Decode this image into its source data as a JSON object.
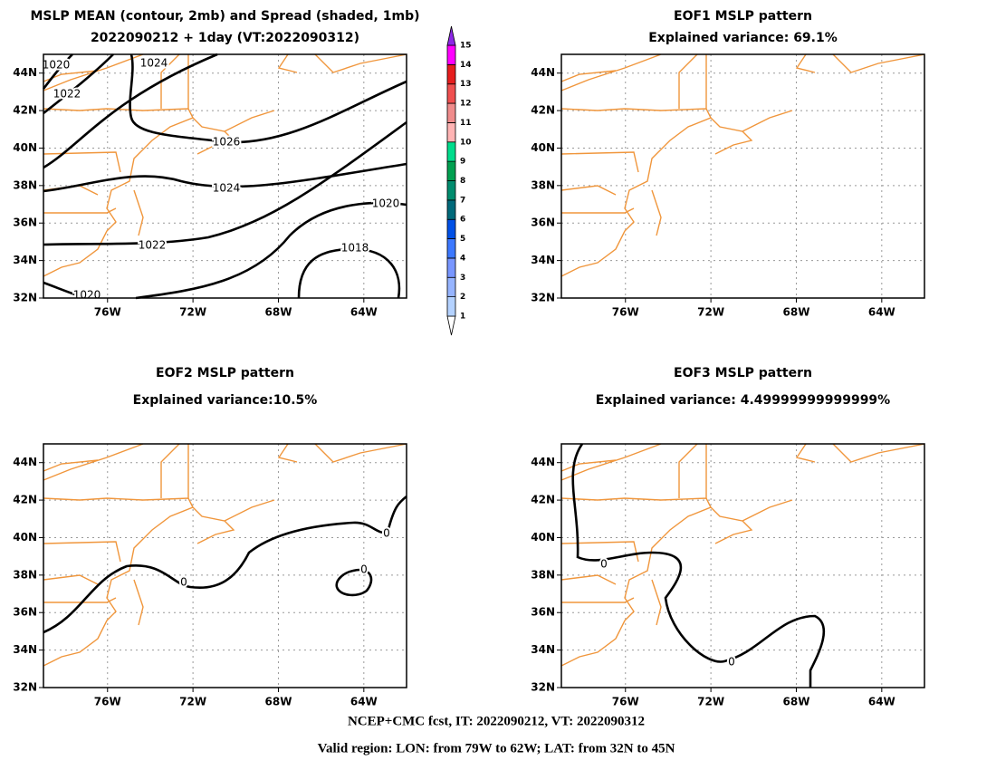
{
  "panels": [
    {
      "title": [
        "MSLP MEAN (contour, 2mb) and Spread (shaded, 1mb)",
        "2022090212 + 1day (VT:2022090312)"
      ],
      "contour_labels": [
        1020,
        1022,
        1024,
        1026,
        1024,
        1022,
        1020,
        1018,
        1020
      ]
    },
    {
      "title": [
        "EOF1 MSLP pattern",
        "Explained variance: 69.1%"
      ],
      "contour_labels": []
    },
    {
      "title": [
        "EOF2 MSLP pattern",
        "Explained variance:10.5%"
      ],
      "contour_labels": [
        0,
        0,
        0
      ]
    },
    {
      "title": [
        "EOF3 MSLP pattern",
        "Explained variance: 4.49999999999999%"
      ],
      "contour_labels": [
        0,
        0
      ]
    }
  ],
  "map": {
    "xlim": [
      -79,
      -62
    ],
    "ylim": [
      32,
      45
    ],
    "xticks": [
      {
        "value": -76,
        "label": "76W"
      },
      {
        "value": -72,
        "label": "72W"
      },
      {
        "value": -68,
        "label": "68W"
      },
      {
        "value": -64,
        "label": "64W"
      }
    ],
    "yticks": [
      {
        "value": 32,
        "label": "32N"
      },
      {
        "value": 34,
        "label": "34N"
      },
      {
        "value": 36,
        "label": "36N"
      },
      {
        "value": 38,
        "label": "38N"
      },
      {
        "value": 40,
        "label": "40N"
      },
      {
        "value": 42,
        "label": "42N"
      },
      {
        "value": 44,
        "label": "44N"
      }
    ]
  },
  "colorbar": {
    "labels": [
      1,
      2,
      3,
      4,
      5,
      6,
      7,
      8,
      9,
      10,
      11,
      12,
      13,
      14,
      15
    ],
    "colors": [
      "#ffffff",
      "#b4d2ff",
      "#96b4ff",
      "#7896ff",
      "#3c78ff",
      "#0050e6",
      "#00697a",
      "#008c6e",
      "#00a050",
      "#00dc8c",
      "#ffb4b4",
      "#f08c8c",
      "#f05050",
      "#e61e1e",
      "#ff00ff",
      "#8c28e6"
    ]
  },
  "footer": [
    "NCEP+CMC fcst, IT: 2022090212, VT: 2022090312",
    "Valid region: LON: from 79W to 62W; LAT: from 32N to 45N"
  ]
}
